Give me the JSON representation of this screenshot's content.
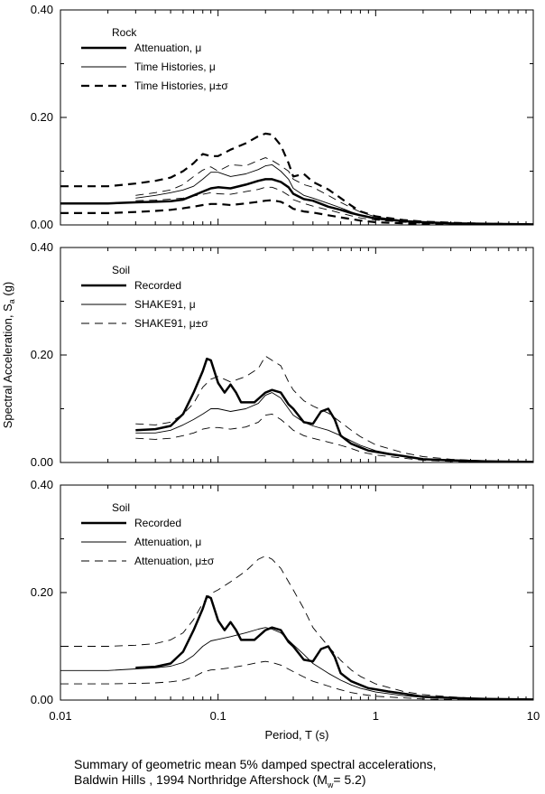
{
  "chart_data": [
    {
      "type": "line",
      "panel_label": "Rock",
      "xscale": "log",
      "xlim": [
        0.01,
        10
      ],
      "ylim": [
        0,
        0.4
      ],
      "yticks": [
        "0.00",
        "0.20",
        "0.40"
      ],
      "xticks": [],
      "grid": false,
      "legend_position": "top-left",
      "series": [
        {
          "name": "Attenuation, μ",
          "style": "thick-solid",
          "x": [
            0.01,
            0.02,
            0.03,
            0.04,
            0.05,
            0.06,
            0.07,
            0.08,
            0.09,
            0.1,
            0.12,
            0.15,
            0.18,
            0.2,
            0.22,
            0.25,
            0.28,
            0.3,
            0.35,
            0.4,
            0.5,
            0.6,
            0.7,
            0.8,
            1.0,
            1.5,
            2.0,
            3.0,
            5.0,
            10.0
          ],
          "y": [
            0.04,
            0.04,
            0.042,
            0.043,
            0.044,
            0.047,
            0.055,
            0.062,
            0.068,
            0.07,
            0.068,
            0.075,
            0.082,
            0.085,
            0.085,
            0.08,
            0.07,
            0.058,
            0.048,
            0.045,
            0.034,
            0.028,
            0.022,
            0.018,
            0.012,
            0.007,
            0.005,
            0.003,
            0.002,
            0.001
          ]
        },
        {
          "name": "Time Histories, μ",
          "style": "thin-solid",
          "x": [
            0.03,
            0.04,
            0.05,
            0.06,
            0.07,
            0.08,
            0.09,
            0.1,
            0.12,
            0.15,
            0.18,
            0.2,
            0.22,
            0.25,
            0.28,
            0.3,
            0.35,
            0.4,
            0.5,
            0.6,
            0.7,
            0.8,
            1.0,
            1.5,
            2.0,
            3.0,
            5.0,
            10.0
          ],
          "y": [
            0.05,
            0.055,
            0.06,
            0.065,
            0.072,
            0.085,
            0.098,
            0.098,
            0.09,
            0.095,
            0.103,
            0.11,
            0.112,
            0.1,
            0.085,
            0.068,
            0.055,
            0.05,
            0.04,
            0.032,
            0.024,
            0.018,
            0.011,
            0.006,
            0.004,
            0.002,
            0.001,
            0.001
          ]
        },
        {
          "name": "Time Histories, μ±σ (upper)",
          "style": "thick-dashed",
          "x": [
            0.01,
            0.02,
            0.03,
            0.04,
            0.05,
            0.06,
            0.07,
            0.08,
            0.09,
            0.1,
            0.12,
            0.15,
            0.18,
            0.2,
            0.22,
            0.25,
            0.28,
            0.3,
            0.35,
            0.4,
            0.5,
            0.6,
            0.7,
            0.8,
            1.0,
            1.5,
            2.0,
            3.0,
            5.0,
            10.0
          ],
          "y": [
            0.072,
            0.072,
            0.077,
            0.082,
            0.088,
            0.1,
            0.115,
            0.132,
            0.128,
            0.128,
            0.14,
            0.152,
            0.165,
            0.17,
            0.168,
            0.148,
            0.115,
            0.09,
            0.095,
            0.08,
            0.066,
            0.05,
            0.036,
            0.025,
            0.016,
            0.009,
            0.006,
            0.004,
            0.002,
            0.001
          ]
        },
        {
          "name": "Time Histories, μ±σ (upper, thin)",
          "style": "thin-dashed",
          "x": [
            0.03,
            0.04,
            0.05,
            0.06,
            0.07,
            0.08,
            0.09,
            0.1,
            0.12,
            0.15,
            0.18,
            0.2,
            0.22,
            0.25,
            0.28,
            0.3,
            0.35,
            0.4,
            0.5,
            0.6,
            0.7,
            0.8,
            1.0,
            1.5,
            2.0,
            3.0
          ],
          "y": [
            0.055,
            0.06,
            0.065,
            0.075,
            0.09,
            0.102,
            0.108,
            0.1,
            0.112,
            0.11,
            0.12,
            0.125,
            0.12,
            0.11,
            0.1,
            0.085,
            0.075,
            0.07,
            0.055,
            0.042,
            0.032,
            0.024,
            0.015,
            0.008,
            0.005,
            0.003
          ]
        },
        {
          "name": "Time Histories, μ±σ (lower, thin)",
          "style": "thin-dashed",
          "x": [
            0.03,
            0.04,
            0.05,
            0.06,
            0.07,
            0.08,
            0.09,
            0.1,
            0.12,
            0.15,
            0.18,
            0.2,
            0.22,
            0.25,
            0.28,
            0.3,
            0.35,
            0.4,
            0.5,
            0.6,
            0.7,
            0.8,
            1.0,
            1.5,
            2.0,
            3.0
          ],
          "y": [
            0.045,
            0.046,
            0.048,
            0.05,
            0.054,
            0.057,
            0.06,
            0.058,
            0.057,
            0.062,
            0.066,
            0.07,
            0.07,
            0.064,
            0.055,
            0.047,
            0.04,
            0.035,
            0.028,
            0.022,
            0.017,
            0.013,
            0.009,
            0.005,
            0.003,
            0.002
          ]
        },
        {
          "name": "Time Histories, μ±σ (lower)",
          "style": "thick-dashed",
          "x": [
            0.01,
            0.02,
            0.03,
            0.04,
            0.05,
            0.06,
            0.07,
            0.08,
            0.09,
            0.1,
            0.12,
            0.15,
            0.18,
            0.2,
            0.22,
            0.25,
            0.28,
            0.3,
            0.35,
            0.4,
            0.5,
            0.6,
            0.7,
            0.8,
            1.0,
            1.5,
            2.0,
            3.0,
            5.0,
            10.0
          ],
          "y": [
            0.022,
            0.022,
            0.024,
            0.026,
            0.028,
            0.031,
            0.034,
            0.037,
            0.039,
            0.039,
            0.037,
            0.04,
            0.043,
            0.045,
            0.046,
            0.043,
            0.036,
            0.03,
            0.025,
            0.023,
            0.018,
            0.014,
            0.011,
            0.008,
            0.005,
            0.003,
            0.002,
            0.001,
            0.001,
            0.0
          ]
        }
      ]
    },
    {
      "type": "line",
      "panel_label": "Soil",
      "xscale": "log",
      "xlim": [
        0.01,
        10
      ],
      "ylim": [
        0,
        0.4
      ],
      "yticks": [
        "0.00",
        "0.20",
        "0.40"
      ],
      "xticks": [],
      "grid": false,
      "legend_position": "top-left",
      "series": [
        {
          "name": "Recorded",
          "style": "thick-solid",
          "x": [
            0.03,
            0.04,
            0.05,
            0.06,
            0.07,
            0.08,
            0.085,
            0.09,
            0.1,
            0.11,
            0.12,
            0.13,
            0.14,
            0.15,
            0.17,
            0.2,
            0.22,
            0.25,
            0.28,
            0.3,
            0.35,
            0.4,
            0.45,
            0.5,
            0.55,
            0.6,
            0.7,
            0.8,
            0.9,
            1.0,
            1.2,
            1.5,
            2.0,
            3.0,
            5.0,
            10.0
          ],
          "y": [
            0.06,
            0.062,
            0.068,
            0.09,
            0.13,
            0.17,
            0.193,
            0.19,
            0.148,
            0.13,
            0.145,
            0.13,
            0.112,
            0.112,
            0.112,
            0.13,
            0.135,
            0.13,
            0.108,
            0.1,
            0.075,
            0.072,
            0.095,
            0.1,
            0.08,
            0.05,
            0.035,
            0.028,
            0.022,
            0.02,
            0.016,
            0.012,
            0.006,
            0.004,
            0.002,
            0.001
          ]
        },
        {
          "name": "SHAKE91, μ",
          "style": "thin-solid",
          "x": [
            0.03,
            0.04,
            0.05,
            0.06,
            0.07,
            0.08,
            0.09,
            0.1,
            0.12,
            0.15,
            0.18,
            0.2,
            0.22,
            0.25,
            0.28,
            0.3,
            0.35,
            0.4,
            0.5,
            0.6,
            0.7,
            0.8,
            1.0,
            1.5,
            2.0,
            3.0,
            5.0,
            10.0
          ],
          "y": [
            0.055,
            0.055,
            0.06,
            0.07,
            0.08,
            0.09,
            0.1,
            0.1,
            0.095,
            0.1,
            0.11,
            0.125,
            0.13,
            0.12,
            0.1,
            0.088,
            0.075,
            0.068,
            0.06,
            0.05,
            0.04,
            0.032,
            0.022,
            0.012,
            0.007,
            0.004,
            0.002,
            0.001
          ]
        },
        {
          "name": "SHAKE91, μ±σ (upper)",
          "style": "thin-dashed",
          "x": [
            0.03,
            0.04,
            0.05,
            0.06,
            0.07,
            0.08,
            0.09,
            0.1,
            0.12,
            0.15,
            0.18,
            0.2,
            0.22,
            0.25,
            0.28,
            0.3,
            0.35,
            0.4,
            0.5,
            0.6,
            0.7,
            0.8,
            1.0,
            1.5,
            2.0,
            3.0,
            5.0,
            10.0
          ],
          "y": [
            0.072,
            0.07,
            0.075,
            0.09,
            0.11,
            0.14,
            0.155,
            0.16,
            0.15,
            0.16,
            0.175,
            0.198,
            0.19,
            0.18,
            0.15,
            0.135,
            0.115,
            0.105,
            0.092,
            0.075,
            0.06,
            0.048,
            0.033,
            0.018,
            0.011,
            0.006,
            0.003,
            0.001
          ]
        },
        {
          "name": "SHAKE91, μ±σ (lower)",
          "style": "thin-dashed",
          "x": [
            0.03,
            0.04,
            0.05,
            0.06,
            0.07,
            0.08,
            0.09,
            0.1,
            0.12,
            0.15,
            0.18,
            0.2,
            0.22,
            0.25,
            0.28,
            0.3,
            0.35,
            0.4,
            0.5,
            0.6,
            0.7,
            0.8,
            1.0,
            1.5,
            2.0,
            3.0,
            5.0
          ],
          "y": [
            0.045,
            0.043,
            0.045,
            0.05,
            0.055,
            0.062,
            0.065,
            0.065,
            0.062,
            0.066,
            0.075,
            0.088,
            0.09,
            0.08,
            0.068,
            0.06,
            0.05,
            0.045,
            0.038,
            0.032,
            0.026,
            0.02,
            0.014,
            0.008,
            0.004,
            0.002,
            0.001
          ]
        }
      ]
    },
    {
      "type": "line",
      "panel_label": "Soil",
      "xscale": "log",
      "xlim": [
        0.01,
        10
      ],
      "ylim": [
        0,
        0.4
      ],
      "yticks": [
        "0.00",
        "0.20",
        "0.40"
      ],
      "xticks": [
        "0.01",
        "0.1",
        "1",
        "10"
      ],
      "xlabel": "Period, T (s)",
      "grid": false,
      "legend_position": "top-left",
      "series": [
        {
          "name": "Recorded",
          "style": "thick-solid",
          "x": [
            0.03,
            0.04,
            0.05,
            0.06,
            0.07,
            0.08,
            0.085,
            0.09,
            0.1,
            0.11,
            0.12,
            0.13,
            0.14,
            0.15,
            0.17,
            0.2,
            0.22,
            0.25,
            0.28,
            0.3,
            0.35,
            0.4,
            0.45,
            0.5,
            0.55,
            0.6,
            0.7,
            0.8,
            0.9,
            1.0,
            1.2,
            1.5,
            2.0,
            3.0,
            5.0,
            10.0
          ],
          "y": [
            0.06,
            0.062,
            0.068,
            0.09,
            0.13,
            0.17,
            0.193,
            0.19,
            0.148,
            0.13,
            0.145,
            0.13,
            0.112,
            0.112,
            0.112,
            0.13,
            0.135,
            0.13,
            0.108,
            0.1,
            0.075,
            0.072,
            0.095,
            0.1,
            0.08,
            0.05,
            0.035,
            0.028,
            0.022,
            0.02,
            0.016,
            0.012,
            0.006,
            0.004,
            0.002,
            0.001
          ]
        },
        {
          "name": "Attenuation, μ",
          "style": "thin-solid",
          "x": [
            0.01,
            0.02,
            0.03,
            0.04,
            0.05,
            0.06,
            0.07,
            0.08,
            0.09,
            0.1,
            0.12,
            0.15,
            0.18,
            0.2,
            0.22,
            0.25,
            0.3,
            0.35,
            0.4,
            0.5,
            0.6,
            0.7,
            0.8,
            1.0,
            1.5,
            2.0,
            3.0,
            5.0,
            10.0
          ],
          "y": [
            0.055,
            0.055,
            0.058,
            0.06,
            0.063,
            0.07,
            0.083,
            0.1,
            0.11,
            0.113,
            0.118,
            0.125,
            0.132,
            0.135,
            0.132,
            0.125,
            0.103,
            0.085,
            0.068,
            0.05,
            0.037,
            0.028,
            0.022,
            0.015,
            0.008,
            0.005,
            0.003,
            0.001,
            0.0
          ]
        },
        {
          "name": "Attenuation, μ±σ (upper)",
          "style": "thin-dashed",
          "x": [
            0.01,
            0.02,
            0.03,
            0.04,
            0.05,
            0.06,
            0.07,
            0.08,
            0.09,
            0.1,
            0.12,
            0.15,
            0.18,
            0.2,
            0.22,
            0.25,
            0.3,
            0.35,
            0.4,
            0.5,
            0.6,
            0.7,
            0.8,
            1.0,
            1.5,
            2.0,
            3.0,
            5.0,
            10.0
          ],
          "y": [
            0.1,
            0.1,
            0.102,
            0.105,
            0.112,
            0.125,
            0.15,
            0.18,
            0.198,
            0.205,
            0.22,
            0.24,
            0.262,
            0.268,
            0.262,
            0.245,
            0.205,
            0.17,
            0.135,
            0.1,
            0.074,
            0.056,
            0.044,
            0.03,
            0.016,
            0.01,
            0.006,
            0.002,
            0.0
          ]
        },
        {
          "name": "Attenuation, μ±σ (lower)",
          "style": "thin-dashed",
          "x": [
            0.01,
            0.02,
            0.03,
            0.04,
            0.05,
            0.06,
            0.07,
            0.08,
            0.09,
            0.1,
            0.12,
            0.15,
            0.18,
            0.2,
            0.22,
            0.25,
            0.3,
            0.35,
            0.4,
            0.5,
            0.6,
            0.7,
            0.8,
            1.0,
            1.5,
            2.0,
            3.0,
            5.0,
            10.0
          ],
          "y": [
            0.03,
            0.03,
            0.031,
            0.032,
            0.034,
            0.037,
            0.043,
            0.052,
            0.056,
            0.057,
            0.06,
            0.065,
            0.07,
            0.072,
            0.07,
            0.065,
            0.053,
            0.043,
            0.035,
            0.026,
            0.019,
            0.014,
            0.011,
            0.007,
            0.004,
            0.002,
            0.001,
            0.0,
            0.0
          ]
        }
      ]
    }
  ],
  "shared_ylabel": {
    "main": "Spectral Acceleration, S",
    "subscript": "a",
    "suffix": " (g)"
  },
  "caption": {
    "line1": "Summary of geometric mean 5% damped spectral accelerations,",
    "line2_main": "Baldwin Hills , 1994 Northridge Aftershock (M",
    "line2_sub": "w",
    "line2_end": "= 5.2)"
  }
}
